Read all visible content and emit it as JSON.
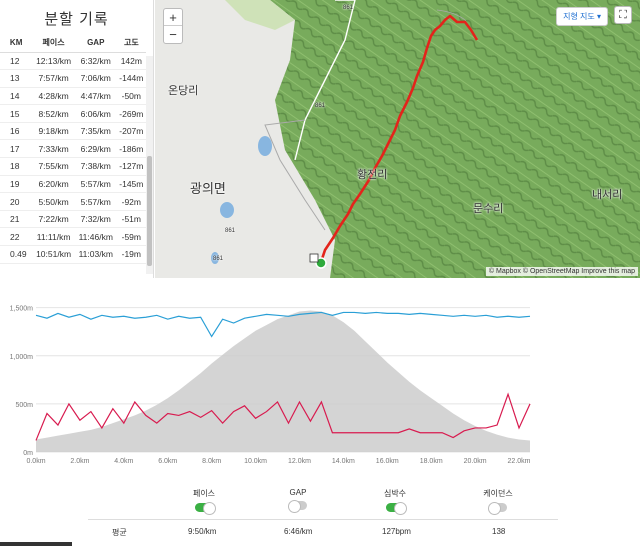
{
  "splits": {
    "title": "분할 기록",
    "headers": [
      "KM",
      "페이스",
      "GAP",
      "고도"
    ],
    "rows": [
      [
        "12",
        "12:13/km",
        "6:32/km",
        "142m"
      ],
      [
        "13",
        "7:57/km",
        "7:06/km",
        "-144m"
      ],
      [
        "14",
        "4:28/km",
        "4:47/km",
        "-50m"
      ],
      [
        "15",
        "8:52/km",
        "6:06/km",
        "-269m"
      ],
      [
        "16",
        "9:18/km",
        "7:35/km",
        "-207m"
      ],
      [
        "17",
        "7:33/km",
        "6:29/km",
        "-186m"
      ],
      [
        "18",
        "7:55/km",
        "7:38/km",
        "-127m"
      ],
      [
        "19",
        "6:20/km",
        "5:57/km",
        "-145m"
      ],
      [
        "20",
        "5:50/km",
        "5:57/km",
        "-92m"
      ],
      [
        "21",
        "7:22/km",
        "7:32/km",
        "-51m"
      ],
      [
        "22",
        "11:11/km",
        "11:46/km",
        "-59m"
      ],
      [
        "0.49",
        "10:51/km",
        "11:03/km",
        "-19m"
      ]
    ]
  },
  "map": {
    "zoom_in": "+",
    "zoom_out": "−",
    "style_label": "지형 지도 ▾",
    "fullscreen_icon": "⛶",
    "attribution": "© Mapbox © OpenStreetMap  Improve this map",
    "places": [
      "온당리",
      "광의면",
      "황전리",
      "문수리",
      "내서리"
    ],
    "road_labels": [
      "861",
      "861",
      "861",
      "861"
    ]
  },
  "chart_data": {
    "type": "line",
    "x": [
      0,
      0.5,
      1,
      1.5,
      2,
      2.5,
      3,
      3.5,
      4,
      4.5,
      5,
      5.5,
      6,
      6.5,
      7,
      7.5,
      8,
      8.5,
      9,
      9.5,
      10,
      10.5,
      11,
      11.5,
      12,
      12.5,
      13,
      13.5,
      14,
      14.5,
      15,
      15.5,
      16,
      16.5,
      17,
      17.5,
      18,
      18.5,
      19,
      19.5,
      20,
      20.5,
      21,
      21.5,
      22,
      22.5
    ],
    "xlabel": "",
    "x_ticks": [
      "0.0km",
      "2.0km",
      "4.0km",
      "6.0km",
      "8.0km",
      "10.0km",
      "12.0km",
      "14.0km",
      "16.0km",
      "18.0km",
      "20.0km",
      "22.0km"
    ],
    "y_ticks": [
      "0m",
      "500m",
      "1,000m",
      "1,500m"
    ],
    "ylim": [
      0,
      1600
    ],
    "xlim": [
      0,
      22.5
    ],
    "series": [
      {
        "name": "고도",
        "color": "#cccccc",
        "values": [
          130,
          150,
          170,
          190,
          210,
          230,
          260,
          300,
          340,
          380,
          430,
          490,
          560,
          640,
          730,
          820,
          920,
          1010,
          1100,
          1180,
          1260,
          1320,
          1380,
          1420,
          1460,
          1470,
          1460,
          1420,
          1350,
          1260,
          1150,
          1040,
          930,
          830,
          730,
          640,
          560,
          480,
          400,
          330,
          270,
          220,
          180,
          150,
          130,
          120
        ]
      },
      {
        "name": "심박수",
        "color": "#2a9fd6",
        "values": [
          1420,
          1390,
          1440,
          1400,
          1430,
          1380,
          1420,
          1400,
          1410,
          1390,
          1400,
          1420,
          1380,
          1410,
          1390,
          1400,
          1200,
          1380,
          1340,
          1390,
          1410,
          1430,
          1420,
          1410,
          1430,
          1440,
          1450,
          1420,
          1450,
          1450,
          1440,
          1450,
          1440,
          1440,
          1430,
          1440,
          1430,
          1420,
          1410,
          1420,
          1410,
          1420,
          1400,
          1410,
          1400,
          1410
        ]
      },
      {
        "name": "페이스",
        "color": "#d81b4f",
        "values": [
          120,
          400,
          280,
          500,
          330,
          420,
          250,
          450,
          300,
          520,
          380,
          300,
          400,
          380,
          420,
          360,
          430,
          300,
          420,
          480,
          350,
          420,
          520,
          300,
          520,
          320,
          520,
          200,
          200,
          200,
          200,
          200,
          200,
          200,
          240,
          200,
          200,
          200,
          150,
          220,
          250,
          250,
          280,
          600,
          250,
          500
        ]
      }
    ]
  },
  "toggles": [
    {
      "label": "페이스",
      "state": "on"
    },
    {
      "label": "GAP",
      "state": "off"
    },
    {
      "label": "심박수",
      "state": "on"
    },
    {
      "label": "케이던스",
      "state": "off"
    }
  ],
  "averages": {
    "label": "평균",
    "pace": "9:50/km",
    "gap": "6:46/km",
    "heart": "127bpm",
    "cadence": "138"
  },
  "colors": {
    "route": "#e3241b",
    "map_green": "#6fa356",
    "toggle_on": "#3bb044"
  }
}
